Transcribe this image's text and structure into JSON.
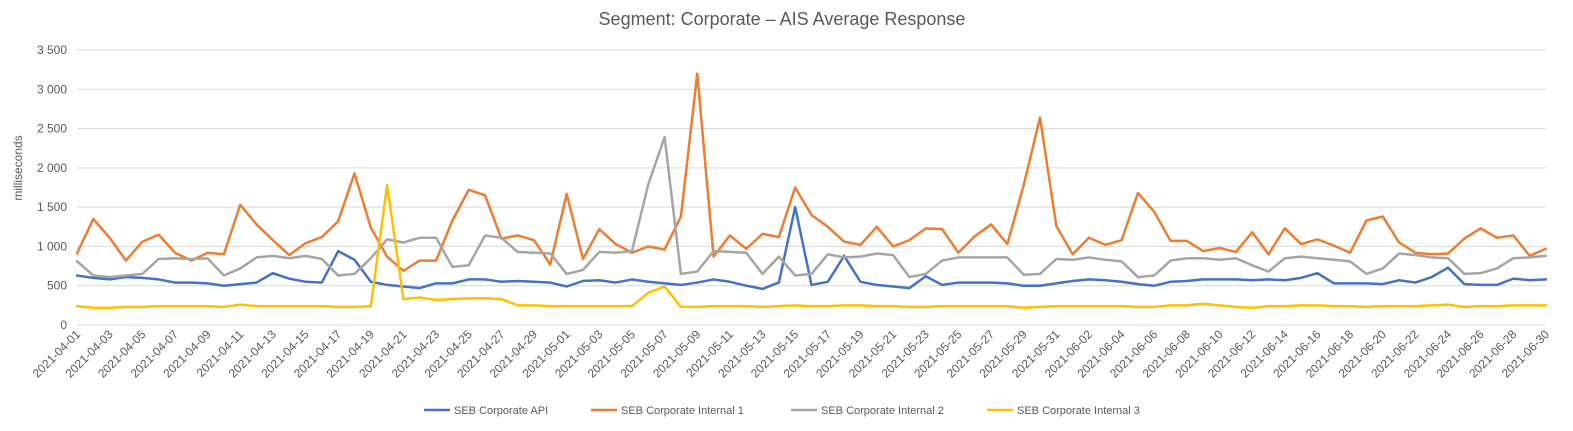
{
  "chart_data": {
    "type": "line",
    "title": "Segment: Corporate – AIS Average Response",
    "ylabel": "milliseconds",
    "xlabel": "",
    "ylim": [
      0,
      3500
    ],
    "yticks": [
      0,
      500,
      1000,
      1500,
      2000,
      2500,
      3000,
      3500
    ],
    "ytick_labels": [
      "0",
      "500",
      "1 000",
      "1 500",
      "2 000",
      "2 500",
      "3 000",
      "3 500"
    ],
    "grid": true,
    "legend_position": "bottom",
    "x_start": "2021-04-01",
    "x_end": "2021-06-30",
    "xtick_labels": [
      "2021-04-01",
      "2021-04-03",
      "2021-04-05",
      "2021-04-07",
      "2021-04-09",
      "2021-04-11",
      "2021-04-13",
      "2021-04-15",
      "2021-04-17",
      "2021-04-19",
      "2021-04-21",
      "2021-04-23",
      "2021-04-25",
      "2021-04-27",
      "2021-04-29",
      "2021-05-01",
      "2021-05-03",
      "2021-05-05",
      "2021-05-07",
      "2021-05-09",
      "2021-05-11",
      "2021-05-13",
      "2021-05-15",
      "2021-05-17",
      "2021-05-19",
      "2021-05-21",
      "2021-05-23",
      "2021-05-25",
      "2021-05-27",
      "2021-05-29",
      "2021-05-31",
      "2021-06-02",
      "2021-06-04",
      "2021-06-06",
      "2021-06-08",
      "2021-06-10",
      "2021-06-12",
      "2021-06-14",
      "2021-06-16",
      "2021-06-18",
      "2021-06-20",
      "2021-06-22",
      "2021-06-24",
      "2021-06-26",
      "2021-06-28",
      "2021-06-30"
    ],
    "series": [
      {
        "name": "SEB Corporate API",
        "color": "#4472c4",
        "values": [
          630,
          600,
          580,
          610,
          600,
          580,
          540,
          540,
          530,
          500,
          520,
          540,
          660,
          590,
          550,
          540,
          940,
          830,
          550,
          510,
          490,
          470,
          530,
          530,
          580,
          580,
          550,
          560,
          550,
          540,
          490,
          560,
          570,
          540,
          580,
          550,
          530,
          510,
          540,
          580,
          550,
          500,
          460,
          540,
          1500,
          510,
          550,
          880,
          550,
          510,
          490,
          470,
          620,
          510,
          540,
          540,
          540,
          530,
          500,
          500,
          530,
          560,
          580,
          570,
          550,
          520,
          500,
          550,
          560,
          580,
          580,
          580,
          570,
          580,
          570,
          600,
          660,
          530,
          530,
          530,
          520,
          570,
          540,
          610,
          730,
          520,
          510,
          510,
          590,
          570,
          580
        ]
      },
      {
        "name": "SEB Corporate Internal 1",
        "color": "#ed7d31",
        "values": [
          910,
          1350,
          1110,
          820,
          1060,
          1150,
          920,
          820,
          920,
          900,
          1530,
          1280,
          1080,
          890,
          1040,
          1120,
          1320,
          1930,
          1240,
          870,
          690,
          820,
          820,
          1330,
          1720,
          1650,
          1100,
          1140,
          1080,
          770,
          1670,
          840,
          1220,
          1030,
          920,
          1000,
          960,
          1380,
          3200,
          870,
          1140,
          970,
          1160,
          1120,
          1750,
          1400,
          1250,
          1060,
          1020,
          1250,
          1000,
          1080,
          1230,
          1220,
          920,
          1130,
          1280,
          1030,
          1780,
          2640,
          1260,
          900,
          1110,
          1020,
          1080,
          1680,
          1440,
          1070,
          1070,
          940,
          980,
          930,
          1180,
          900,
          1230,
          1030,
          1090,
          1010,
          920,
          1330,
          1380,
          1050,
          920,
          900,
          910,
          1100,
          1230,
          1110,
          1140,
          880,
          970
        ]
      },
      {
        "name": "SEB Corporate Internal 2",
        "color": "#a5a5a5",
        "values": [
          810,
          630,
          610,
          630,
          650,
          840,
          850,
          840,
          850,
          630,
          720,
          860,
          880,
          850,
          880,
          840,
          630,
          650,
          850,
          1090,
          1050,
          1110,
          1110,
          740,
          760,
          1140,
          1110,
          930,
          920,
          910,
          650,
          700,
          930,
          920,
          940,
          1790,
          2390,
          650,
          680,
          940,
          930,
          920,
          650,
          870,
          630,
          650,
          900,
          860,
          870,
          910,
          890,
          610,
          650,
          820,
          860,
          860,
          860,
          860,
          640,
          650,
          840,
          830,
          860,
          830,
          810,
          610,
          630,
          820,
          850,
          850,
          830,
          850,
          760,
          680,
          850,
          870,
          850,
          830,
          810,
          650,
          720,
          910,
          890,
          860,
          850,
          650,
          660,
          720,
          850,
          860,
          880
        ]
      },
      {
        "name": "SEB Corporate Internal 3",
        "color": "#ffc000",
        "values": [
          240,
          220,
          220,
          230,
          230,
          240,
          240,
          240,
          240,
          230,
          260,
          240,
          240,
          240,
          240,
          240,
          230,
          230,
          240,
          1780,
          330,
          350,
          320,
          330,
          340,
          340,
          330,
          250,
          250,
          240,
          240,
          240,
          240,
          240,
          240,
          410,
          490,
          230,
          230,
          240,
          240,
          240,
          230,
          240,
          250,
          240,
          240,
          250,
          250,
          240,
          240,
          230,
          230,
          240,
          240,
          240,
          240,
          240,
          220,
          230,
          240,
          240,
          240,
          240,
          240,
          230,
          230,
          250,
          250,
          270,
          250,
          230,
          220,
          240,
          240,
          250,
          250,
          240,
          240,
          230,
          240,
          240,
          240,
          250,
          260,
          230,
          240,
          240,
          250,
          250,
          250
        ]
      }
    ]
  }
}
